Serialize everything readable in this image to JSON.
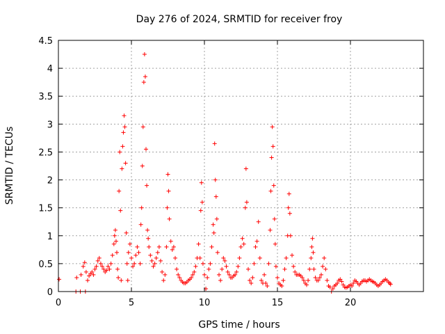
{
  "chart_data": {
    "type": "scatter",
    "title": "Day 276 of 2024, SRMTID for receiver froy",
    "xlabel": "GPS time / hours",
    "ylabel": "SRMTID / TECUs",
    "xlim": [
      0,
      25
    ],
    "ylim": [
      0,
      4.5
    ],
    "xticks": [
      0,
      5,
      10,
      15,
      20
    ],
    "xtick_labels": [
      "0",
      "5",
      "10",
      "15",
      "20"
    ],
    "yticks": [
      0,
      0.5,
      1,
      1.5,
      2,
      2.5,
      3,
      3.5,
      4,
      4.5
    ],
    "ytick_labels": [
      "0",
      "0.5",
      "1",
      "1.5",
      "2",
      "2.5",
      "3",
      "3.5",
      "4",
      "4.5"
    ],
    "grid": true,
    "marker": "plus",
    "color": "#ff0000",
    "series": [
      {
        "name": "SRMTID",
        "points": [
          [
            0.05,
            0.22
          ],
          [
            1.2,
            0.0
          ],
          [
            1.25,
            0.25
          ],
          [
            1.5,
            0.0
          ],
          [
            1.55,
            0.3
          ],
          [
            1.7,
            0.45
          ],
          [
            1.8,
            0.52
          ],
          [
            1.85,
            0.0
          ],
          [
            1.9,
            0.35
          ],
          [
            2.0,
            0.2
          ],
          [
            2.1,
            0.28
          ],
          [
            2.2,
            0.32
          ],
          [
            2.3,
            0.35
          ],
          [
            2.4,
            0.3
          ],
          [
            2.5,
            0.4
          ],
          [
            2.6,
            0.45
          ],
          [
            2.7,
            0.55
          ],
          [
            2.8,
            0.6
          ],
          [
            2.9,
            0.5
          ],
          [
            3.0,
            0.45
          ],
          [
            3.1,
            0.4
          ],
          [
            3.2,
            0.35
          ],
          [
            3.3,
            0.38
          ],
          [
            3.4,
            0.45
          ],
          [
            3.5,
            0.4
          ],
          [
            3.6,
            0.5
          ],
          [
            3.7,
            0.65
          ],
          [
            3.8,
            0.85
          ],
          [
            3.85,
            1.0
          ],
          [
            3.9,
            1.1
          ],
          [
            3.95,
            0.9
          ],
          [
            4.0,
            0.7
          ],
          [
            4.05,
            0.4
          ],
          [
            4.1,
            0.25
          ],
          [
            4.15,
            1.8
          ],
          [
            4.2,
            2.5
          ],
          [
            4.25,
            1.45
          ],
          [
            4.3,
            0.2
          ],
          [
            4.35,
            2.2
          ],
          [
            4.4,
            2.6
          ],
          [
            4.45,
            2.85
          ],
          [
            4.5,
            3.15
          ],
          [
            4.55,
            2.95
          ],
          [
            4.6,
            2.3
          ],
          [
            4.65,
            1.05
          ],
          [
            4.7,
            0.5
          ],
          [
            4.75,
            0.2
          ],
          [
            4.8,
            0.7
          ],
          [
            4.9,
            0.85
          ],
          [
            5.0,
            0.6
          ],
          [
            5.1,
            0.45
          ],
          [
            5.2,
            0.5
          ],
          [
            5.3,
            0.65
          ],
          [
            5.4,
            0.8
          ],
          [
            5.5,
            0.7
          ],
          [
            5.6,
            0.5
          ],
          [
            5.65,
            1.2
          ],
          [
            5.7,
            1.5
          ],
          [
            5.75,
            2.25
          ],
          [
            5.8,
            2.95
          ],
          [
            5.85,
            3.75
          ],
          [
            5.9,
            4.25
          ],
          [
            5.95,
            3.85
          ],
          [
            6.0,
            2.55
          ],
          [
            6.05,
            1.9
          ],
          [
            6.1,
            1.1
          ],
          [
            6.15,
            0.95
          ],
          [
            6.2,
            0.8
          ],
          [
            6.3,
            0.65
          ],
          [
            6.4,
            0.55
          ],
          [
            6.5,
            0.45
          ],
          [
            6.6,
            0.5
          ],
          [
            6.7,
            0.6
          ],
          [
            6.8,
            0.7
          ],
          [
            6.9,
            0.8
          ],
          [
            7.0,
            0.55
          ],
          [
            7.1,
            0.35
          ],
          [
            7.2,
            0.2
          ],
          [
            7.3,
            0.3
          ],
          [
            7.4,
            0.8
          ],
          [
            7.45,
            1.5
          ],
          [
            7.5,
            2.1
          ],
          [
            7.55,
            1.8
          ],
          [
            7.6,
            1.3
          ],
          [
            7.7,
            0.9
          ],
          [
            7.8,
            0.75
          ],
          [
            7.9,
            0.8
          ],
          [
            8.0,
            0.6
          ],
          [
            8.1,
            0.4
          ],
          [
            8.2,
            0.3
          ],
          [
            8.3,
            0.25
          ],
          [
            8.4,
            0.2
          ],
          [
            8.5,
            0.17
          ],
          [
            8.6,
            0.15
          ],
          [
            8.7,
            0.15
          ],
          [
            8.8,
            0.17
          ],
          [
            8.9,
            0.2
          ],
          [
            9.0,
            0.22
          ],
          [
            9.1,
            0.25
          ],
          [
            9.2,
            0.3
          ],
          [
            9.3,
            0.35
          ],
          [
            9.4,
            0.45
          ],
          [
            9.5,
            0.6
          ],
          [
            9.6,
            0.85
          ],
          [
            9.7,
            0.6
          ],
          [
            9.75,
            1.45
          ],
          [
            9.8,
            1.95
          ],
          [
            9.85,
            1.6
          ],
          [
            9.9,
            0.5
          ],
          [
            10.0,
            0.3
          ],
          [
            10.1,
            0.05
          ],
          [
            10.2,
            0.25
          ],
          [
            10.3,
            0.4
          ],
          [
            10.4,
            0.5
          ],
          [
            10.5,
            0.8
          ],
          [
            10.6,
            1.2
          ],
          [
            10.65,
            1.05
          ],
          [
            10.7,
            2.65
          ],
          [
            10.75,
            2.0
          ],
          [
            10.8,
            1.7
          ],
          [
            10.85,
            1.3
          ],
          [
            10.9,
            0.7
          ],
          [
            11.0,
            0.3
          ],
          [
            11.1,
            0.2
          ],
          [
            11.2,
            0.4
          ],
          [
            11.3,
            0.6
          ],
          [
            11.4,
            0.55
          ],
          [
            11.5,
            0.45
          ],
          [
            11.6,
            0.35
          ],
          [
            11.7,
            0.3
          ],
          [
            11.8,
            0.25
          ],
          [
            11.9,
            0.25
          ],
          [
            12.0,
            0.28
          ],
          [
            12.1,
            0.3
          ],
          [
            12.2,
            0.35
          ],
          [
            12.3,
            0.45
          ],
          [
            12.4,
            0.6
          ],
          [
            12.5,
            0.8
          ],
          [
            12.6,
            0.95
          ],
          [
            12.7,
            0.85
          ],
          [
            12.8,
            1.5
          ],
          [
            12.85,
            2.2
          ],
          [
            12.9,
            1.6
          ],
          [
            13.0,
            0.4
          ],
          [
            13.1,
            0.2
          ],
          [
            13.2,
            0.15
          ],
          [
            13.3,
            0.25
          ],
          [
            13.4,
            0.5
          ],
          [
            13.5,
            0.8
          ],
          [
            13.6,
            0.9
          ],
          [
            13.7,
            1.25
          ],
          [
            13.8,
            0.6
          ],
          [
            13.9,
            0.2
          ],
          [
            14.0,
            0.15
          ],
          [
            14.1,
            0.3
          ],
          [
            14.2,
            0.15
          ],
          [
            14.3,
            0.1
          ],
          [
            14.4,
            0.5
          ],
          [
            14.5,
            1.1
          ],
          [
            14.55,
            1.8
          ],
          [
            14.6,
            2.4
          ],
          [
            14.65,
            2.95
          ],
          [
            14.7,
            2.6
          ],
          [
            14.75,
            1.9
          ],
          [
            14.8,
            1.3
          ],
          [
            14.85,
            0.85
          ],
          [
            14.9,
            0.45
          ],
          [
            15.0,
            0.25
          ],
          [
            15.1,
            0.15
          ],
          [
            15.2,
            0.12
          ],
          [
            15.3,
            0.1
          ],
          [
            15.4,
            0.2
          ],
          [
            15.5,
            0.4
          ],
          [
            15.6,
            0.6
          ],
          [
            15.7,
            1.0
          ],
          [
            15.75,
            1.5
          ],
          [
            15.8,
            1.75
          ],
          [
            15.85,
            1.4
          ],
          [
            15.9,
            1.0
          ],
          [
            16.0,
            0.65
          ],
          [
            16.1,
            0.45
          ],
          [
            16.2,
            0.35
          ],
          [
            16.3,
            0.3
          ],
          [
            16.4,
            0.3
          ],
          [
            16.5,
            0.3
          ],
          [
            16.6,
            0.28
          ],
          [
            16.7,
            0.25
          ],
          [
            16.8,
            0.2
          ],
          [
            16.9,
            0.15
          ],
          [
            17.0,
            0.12
          ],
          [
            17.1,
            0.2
          ],
          [
            17.2,
            0.4
          ],
          [
            17.3,
            0.6
          ],
          [
            17.35,
            0.8
          ],
          [
            17.4,
            0.95
          ],
          [
            17.45,
            0.7
          ],
          [
            17.5,
            0.4
          ],
          [
            17.6,
            0.25
          ],
          [
            17.7,
            0.2
          ],
          [
            17.8,
            0.2
          ],
          [
            17.9,
            0.25
          ],
          [
            18.0,
            0.3
          ],
          [
            18.1,
            0.45
          ],
          [
            18.2,
            0.6
          ],
          [
            18.3,
            0.4
          ],
          [
            18.4,
            0.2
          ],
          [
            18.5,
            0.1
          ],
          [
            18.6,
            0.08
          ],
          [
            18.7,
            0.0
          ],
          [
            18.8,
            0.05
          ],
          [
            18.9,
            0.1
          ],
          [
            19.0,
            0.12
          ],
          [
            19.1,
            0.15
          ],
          [
            19.2,
            0.2
          ],
          [
            19.3,
            0.22
          ],
          [
            19.4,
            0.18
          ],
          [
            19.5,
            0.12
          ],
          [
            19.6,
            0.08
          ],
          [
            19.7,
            0.07
          ],
          [
            19.8,
            0.08
          ],
          [
            19.9,
            0.1
          ],
          [
            20.0,
            0.12
          ],
          [
            20.1,
            0.1
          ],
          [
            20.2,
            0.15
          ],
          [
            20.3,
            0.2
          ],
          [
            20.4,
            0.18
          ],
          [
            20.5,
            0.15
          ],
          [
            20.6,
            0.12
          ],
          [
            20.7,
            0.15
          ],
          [
            20.8,
            0.18
          ],
          [
            20.9,
            0.2
          ],
          [
            21.0,
            0.2
          ],
          [
            21.1,
            0.18
          ],
          [
            21.2,
            0.2
          ],
          [
            21.3,
            0.22
          ],
          [
            21.4,
            0.2
          ],
          [
            21.5,
            0.18
          ],
          [
            21.6,
            0.17
          ],
          [
            21.7,
            0.15
          ],
          [
            21.8,
            0.12
          ],
          [
            21.9,
            0.1
          ],
          [
            22.0,
            0.12
          ],
          [
            22.1,
            0.15
          ],
          [
            22.2,
            0.18
          ],
          [
            22.3,
            0.2
          ],
          [
            22.4,
            0.22
          ],
          [
            22.5,
            0.2
          ],
          [
            22.6,
            0.17
          ],
          [
            22.7,
            0.15
          ],
          [
            22.75,
            0.13
          ]
        ]
      }
    ]
  }
}
